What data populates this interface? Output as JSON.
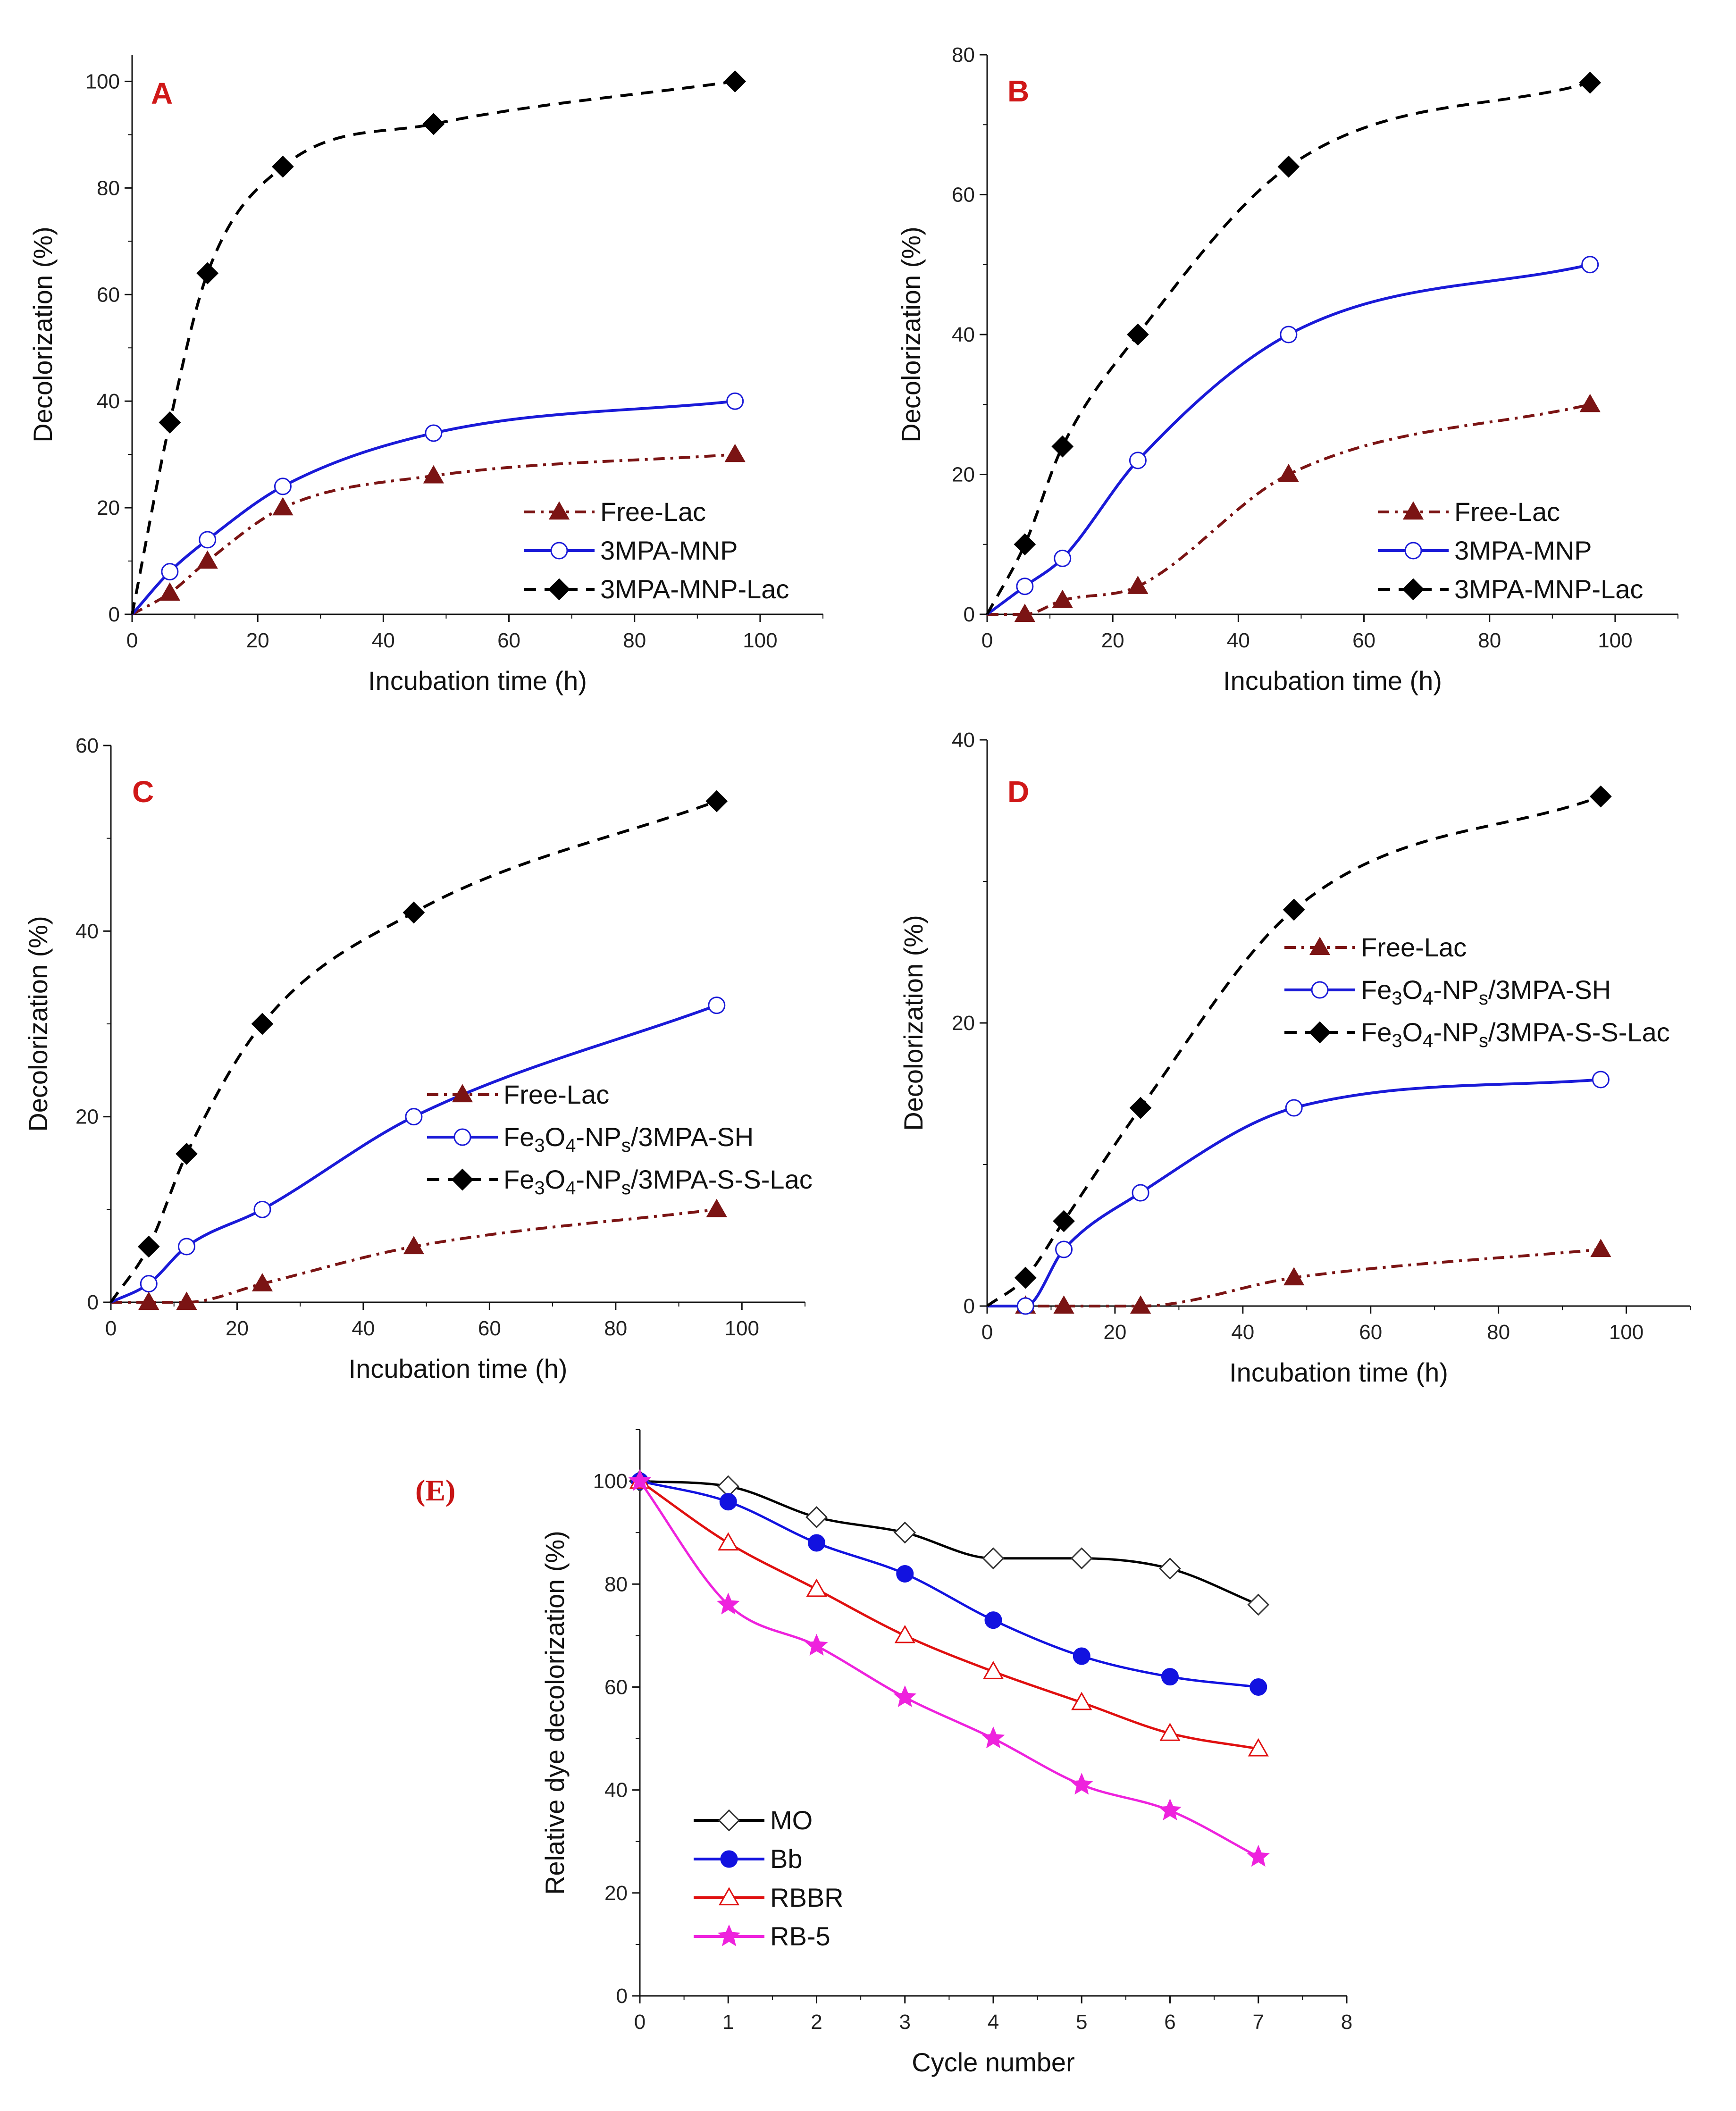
{
  "chart_data": [
    {
      "panel": "A",
      "type": "line",
      "xlabel": "Incubation time (h)",
      "ylabel": "Decolorization (%)",
      "xlim": [
        0,
        110
      ],
      "ylim": [
        0,
        105
      ],
      "xticks": [
        0,
        20,
        40,
        60,
        80,
        100
      ],
      "yticks": [
        0,
        20,
        40,
        60,
        80,
        100
      ],
      "legend_position": "lower-right",
      "series": [
        {
          "name": "Free-Lac",
          "color": "#7b1414",
          "dash": "dashdot",
          "marker": "triangle-filled",
          "x": [
            0,
            6,
            12,
            24,
            48,
            96
          ],
          "y": [
            0,
            4,
            10,
            20,
            26,
            30
          ]
        },
        {
          "name": "3MPA-MNP",
          "color": "#1a1ad8",
          "dash": "solid",
          "marker": "circle-open",
          "x": [
            0,
            6,
            12,
            24,
            48,
            96
          ],
          "y": [
            0,
            8,
            14,
            24,
            34,
            40
          ]
        },
        {
          "name": "3MPA-MNP-Lac",
          "color": "#000000",
          "dash": "dashed",
          "marker": "diamond-filled",
          "x": [
            0,
            6,
            12,
            24,
            48,
            96
          ],
          "y": [
            0,
            36,
            64,
            84,
            92,
            100
          ]
        }
      ]
    },
    {
      "panel": "B",
      "type": "line",
      "xlabel": "Incubation time (h)",
      "ylabel": "Decolorization (%)",
      "xlim": [
        0,
        110
      ],
      "ylim": [
        0,
        80
      ],
      "xticks": [
        0,
        20,
        40,
        60,
        80,
        100
      ],
      "yticks": [
        0,
        20,
        40,
        60,
        80
      ],
      "legend_position": "lower-right",
      "series": [
        {
          "name": "Free-Lac",
          "color": "#7b1414",
          "dash": "dashdot",
          "marker": "triangle-filled",
          "x": [
            0,
            6,
            12,
            24,
            48,
            96
          ],
          "y": [
            0,
            0,
            2,
            4,
            20,
            30
          ]
        },
        {
          "name": "3MPA-MNP",
          "color": "#1a1ad8",
          "dash": "solid",
          "marker": "circle-open",
          "x": [
            0,
            6,
            12,
            24,
            48,
            96
          ],
          "y": [
            0,
            4,
            8,
            22,
            40,
            50
          ]
        },
        {
          "name": "3MPA-MNP-Lac",
          "color": "#000000",
          "dash": "dashed",
          "marker": "diamond-filled",
          "x": [
            0,
            6,
            12,
            24,
            48,
            96
          ],
          "y": [
            0,
            10,
            24,
            40,
            64,
            76
          ]
        }
      ]
    },
    {
      "panel": "C",
      "type": "line",
      "xlabel": "Incubation time (h)",
      "ylabel": "Decolorization (%)",
      "xlim": [
        0,
        110
      ],
      "ylim": [
        0,
        60
      ],
      "xticks": [
        0,
        20,
        40,
        60,
        80,
        100
      ],
      "yticks": [
        0,
        20,
        40,
        60
      ],
      "legend_position": "lower-right",
      "series": [
        {
          "name": "Free-Lac",
          "color": "#7b1414",
          "dash": "dashdot",
          "marker": "triangle-filled",
          "x": [
            0,
            6,
            12,
            24,
            48,
            96
          ],
          "y": [
            0,
            0,
            0,
            2,
            6,
            10
          ]
        },
        {
          "name": "Fe3O4-NPs/3MPA-SH",
          "color": "#1a1ad8",
          "dash": "solid",
          "marker": "circle-open",
          "x": [
            0,
            6,
            12,
            24,
            48,
            96
          ],
          "y": [
            0,
            2,
            6,
            10,
            20,
            32
          ]
        },
        {
          "name": "Fe3O4-NPs/3MPA-S-S-Lac",
          "color": "#000000",
          "dash": "dashed",
          "marker": "diamond-filled",
          "x": [
            0,
            6,
            12,
            24,
            48,
            96
          ],
          "y": [
            0,
            6,
            16,
            30,
            42,
            54
          ]
        }
      ]
    },
    {
      "panel": "D",
      "type": "line",
      "xlabel": "Incubation time (h)",
      "ylabel": "Decolorization (%)",
      "xlim": [
        0,
        110
      ],
      "ylim": [
        0,
        40
      ],
      "xticks": [
        0,
        20,
        40,
        60,
        80,
        100
      ],
      "yticks": [
        0,
        20,
        40
      ],
      "legend_position": "upper-right",
      "series": [
        {
          "name": "Free-Lac",
          "color": "#7b1414",
          "dash": "dashdot",
          "marker": "triangle-filled",
          "x": [
            0,
            6,
            12,
            24,
            48,
            96
          ],
          "y": [
            0,
            0,
            0,
            0,
            2,
            4
          ]
        },
        {
          "name": "Fe3O4-NPs/3MPA-SH",
          "color": "#1a1ad8",
          "dash": "solid",
          "marker": "circle-open",
          "x": [
            0,
            6,
            12,
            24,
            48,
            96
          ],
          "y": [
            0,
            0,
            4,
            8,
            14,
            16
          ]
        },
        {
          "name": "Fe3O4-NPs/3MPA-S-S-Lac",
          "color": "#000000",
          "dash": "dashed",
          "marker": "diamond-filled",
          "x": [
            0,
            6,
            12,
            24,
            48,
            96
          ],
          "y": [
            0,
            2,
            6,
            14,
            28,
            36
          ]
        }
      ]
    },
    {
      "panel": "(E)",
      "type": "line",
      "xlabel": "Cycle number",
      "ylabel": "Relative dye decolorization (%)",
      "xlim": [
        0,
        8
      ],
      "ylim": [
        0,
        110
      ],
      "xticks": [
        0,
        1,
        2,
        3,
        4,
        5,
        6,
        7,
        8
      ],
      "yticks": [
        0,
        20,
        40,
        60,
        80,
        100
      ],
      "legend_position": "lower-left",
      "series": [
        {
          "name": "MO",
          "color": "#000000",
          "dash": "solid",
          "marker": "diamond-open",
          "x": [
            0,
            1,
            2,
            3,
            4,
            5,
            6,
            7
          ],
          "y": [
            100,
            99,
            93,
            90,
            85,
            85,
            83,
            76
          ]
        },
        {
          "name": "Bb",
          "color": "#1212e0",
          "dash": "solid",
          "marker": "circle-filled",
          "x": [
            0,
            1,
            2,
            3,
            4,
            5,
            6,
            7
          ],
          "y": [
            100,
            96,
            88,
            82,
            73,
            66,
            62,
            60
          ]
        },
        {
          "name": "RBBR",
          "color": "#e01010",
          "dash": "solid",
          "marker": "triangle-open",
          "x": [
            0,
            1,
            2,
            3,
            4,
            5,
            6,
            7
          ],
          "y": [
            100,
            88,
            79,
            70,
            63,
            57,
            51,
            48
          ]
        },
        {
          "name": "RB-5",
          "color": "#ee22dd",
          "dash": "solid",
          "marker": "star-filled",
          "x": [
            0,
            1,
            2,
            3,
            4,
            5,
            6,
            7
          ],
          "y": [
            100,
            76,
            68,
            58,
            50,
            41,
            36,
            27
          ]
        }
      ]
    }
  ]
}
